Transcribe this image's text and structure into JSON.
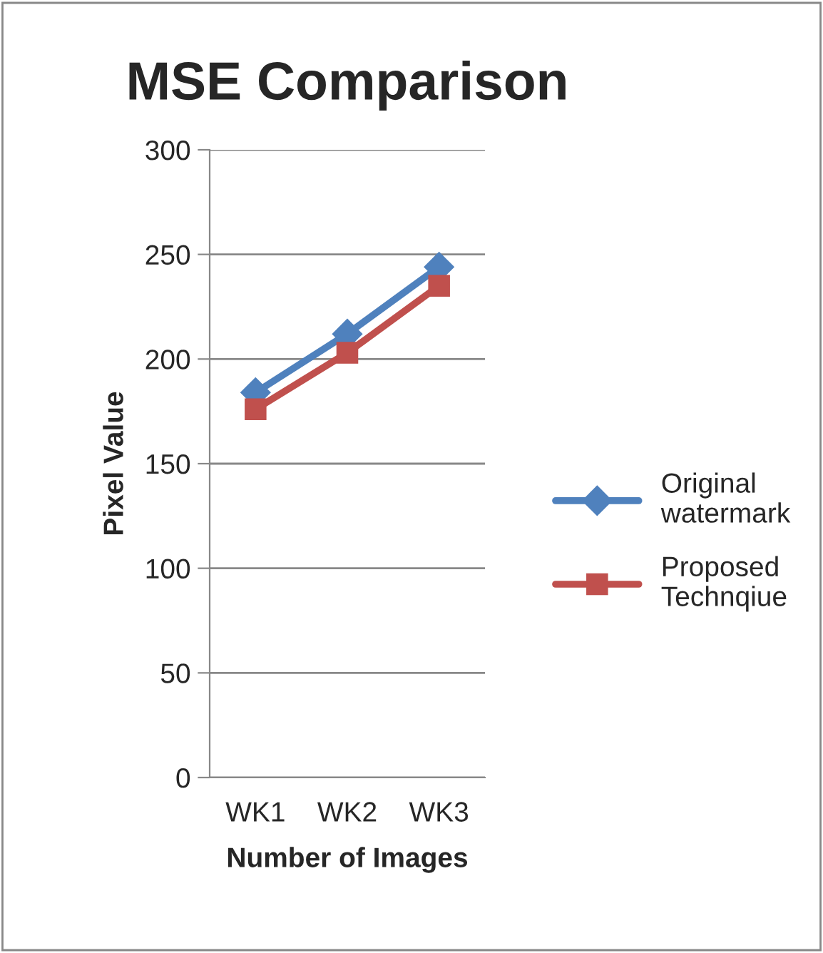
{
  "chart_data": {
    "type": "line",
    "title": "MSE Comparison",
    "xlabel": "Number of Images",
    "ylabel": "Pixel Value",
    "categories": [
      "WK1",
      "WK2",
      "WK3"
    ],
    "series": [
      {
        "name": "Original watermark",
        "color": "#4f81bd",
        "values": [
          184,
          212,
          244
        ],
        "marker": "diamond"
      },
      {
        "name": "Proposed Technqiue",
        "color": "#c0504d",
        "values": [
          176,
          203,
          235
        ],
        "marker": "square"
      }
    ],
    "ylim": [
      0,
      300
    ],
    "yticks": [
      0,
      50,
      100,
      150,
      200,
      250,
      300
    ],
    "grid": "y",
    "legend": "right",
    "line_style": "solid"
  }
}
